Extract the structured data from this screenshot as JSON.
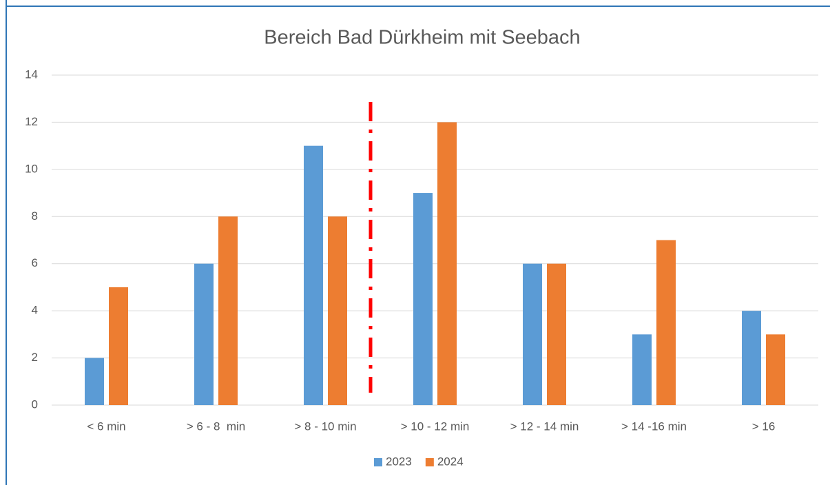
{
  "chart_data": {
    "type": "bar",
    "title": "Bereich Bad Dürkheim mit Seebach",
    "categories": [
      "< 6 min",
      "> 6 - 8  min",
      "> 8 - 10 min",
      "> 10 - 12 min",
      "> 12 - 14 min",
      "> 14 -16 min",
      "> 16"
    ],
    "series": [
      {
        "name": "2023",
        "color": "#5b9bd5",
        "values": [
          2,
          6,
          11,
          9,
          6,
          3,
          4
        ]
      },
      {
        "name": "2024",
        "color": "#ed7d31",
        "values": [
          5,
          8,
          8,
          12,
          6,
          7,
          3
        ]
      }
    ],
    "ylim": [
      0,
      14
    ],
    "yticks": [
      0,
      2,
      4,
      6,
      8,
      10,
      12,
      14
    ],
    "grid": true,
    "legend": "bottom"
  }
}
